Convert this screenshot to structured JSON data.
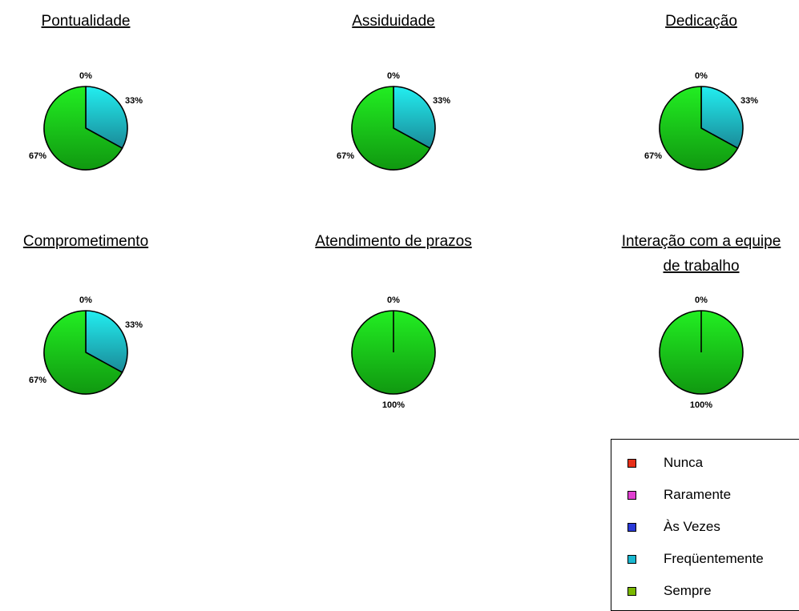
{
  "chart_data": [
    {
      "type": "pie",
      "title": "Pontualidade",
      "categories": [
        "Nunca",
        "Raramente",
        "Às Vezes",
        "Freqüentemente",
        "Sempre"
      ],
      "values": [
        0,
        0,
        0,
        33,
        67
      ],
      "labels": [
        "0%",
        "33%",
        "67%"
      ]
    },
    {
      "type": "pie",
      "title": "Assiduidade",
      "categories": [
        "Nunca",
        "Raramente",
        "Às Vezes",
        "Freqüentemente",
        "Sempre"
      ],
      "values": [
        0,
        0,
        0,
        33,
        67
      ],
      "labels": [
        "0%",
        "33%",
        "67%"
      ]
    },
    {
      "type": "pie",
      "title": "Dedicação",
      "categories": [
        "Nunca",
        "Raramente",
        "Às Vezes",
        "Freqüentemente",
        "Sempre"
      ],
      "values": [
        0,
        0,
        0,
        33,
        67
      ],
      "labels": [
        "0%",
        "33%",
        "67%"
      ]
    },
    {
      "type": "pie",
      "title": "Comprometimento",
      "categories": [
        "Nunca",
        "Raramente",
        "Às Vezes",
        "Freqüentemente",
        "Sempre"
      ],
      "values": [
        0,
        0,
        0,
        33,
        67
      ],
      "labels": [
        "0%",
        "33%",
        "67%"
      ]
    },
    {
      "type": "pie",
      "title": "Atendimento de prazos",
      "categories": [
        "Nunca",
        "Raramente",
        "Às Vezes",
        "Freqüentemente",
        "Sempre"
      ],
      "values": [
        0,
        0,
        0,
        0,
        100
      ],
      "labels": [
        "0%",
        "100%"
      ]
    },
    {
      "type": "pie",
      "title": "Interação com a equipe de trabalho",
      "title_lines": [
        "Interação com a equipe",
        "de trabalho"
      ],
      "categories": [
        "Nunca",
        "Raramente",
        "Às Vezes",
        "Freqüentemente",
        "Sempre"
      ],
      "values": [
        0,
        0,
        0,
        0,
        100
      ],
      "labels": [
        "0%",
        "100%"
      ]
    }
  ],
  "legend": {
    "placement": "bottom-right",
    "items": [
      {
        "label": "Nunca",
        "color": "#e8301a"
      },
      {
        "label": "Raramente",
        "color": "#e040d0"
      },
      {
        "label": "Às Vezes",
        "color": "#2a3ad8"
      },
      {
        "label": "Freqüentemente",
        "color": "#1ab8d0"
      },
      {
        "label": "Sempre",
        "color": "#7ab800"
      }
    ]
  },
  "colors": {
    "sempre_light": "#22ee22",
    "sempre_dark": "#109810",
    "freq_light": "#22eef0",
    "freq_dark": "#1a8a98"
  }
}
